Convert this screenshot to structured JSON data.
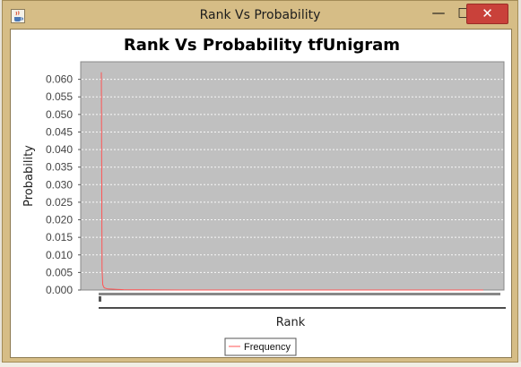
{
  "window": {
    "title": "Rank Vs Probability",
    "icon": "java-cup-icon",
    "controls": {
      "minimize": "—",
      "maximize": "□",
      "close": "✕"
    }
  },
  "colors": {
    "frame": "#d6bd86",
    "plot_background": "#c0c0c0",
    "series_line": "#ff5555",
    "close_button": "#c9413a"
  },
  "chart_data": {
    "type": "line",
    "title": "Rank Vs Probability tfUnigram",
    "xlabel": "Rank",
    "ylabel": "Probability",
    "ylim": [
      0.0,
      0.065
    ],
    "yticks": [
      "0.000",
      "0.005",
      "0.010",
      "0.015",
      "0.020",
      "0.025",
      "0.030",
      "0.035",
      "0.040",
      "0.045",
      "0.050",
      "0.055",
      "0.060"
    ],
    "xticks_visible": "dense, unreadable",
    "grid": true,
    "legend_position": "bottom-center",
    "series": [
      {
        "name": "Frequency",
        "color": "#ff5555",
        "points": [
          [
            1,
            0.062
          ],
          [
            2,
            0.006
          ],
          [
            3,
            0.0015
          ],
          [
            5,
            0.0006
          ],
          [
            10,
            0.0003
          ],
          [
            50,
            0.0001
          ],
          [
            200,
            0.0
          ],
          [
            1000,
            0.0
          ]
        ]
      }
    ]
  }
}
